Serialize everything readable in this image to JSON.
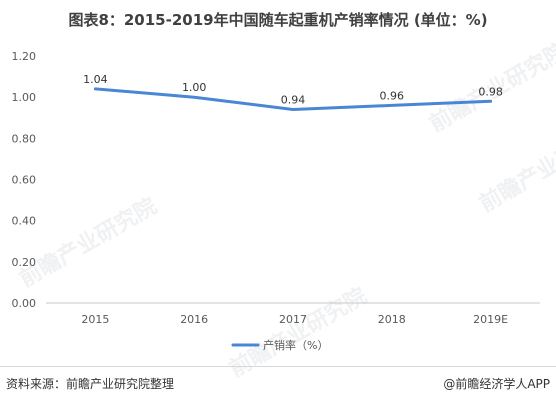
{
  "title": "图表8：2015-2019年中国随车起重机产销率情况 (单位：%)",
  "footer": {
    "source": "资料来源：前瞻产业研究院整理",
    "brand": "@前瞻经济学人APP"
  },
  "watermark": "前瞻产业研究院",
  "colors": {
    "series": "#4a86d6",
    "axis": "#c8c8c8",
    "text": "#595959"
  },
  "chart_data": {
    "type": "line",
    "title": "图表8：2015-2019年中国随车起重机产销率情况 (单位：%)",
    "categories": [
      "2015",
      "2016",
      "2017",
      "2018",
      "2019E"
    ],
    "series": [
      {
        "name": "产销率（%）",
        "values": [
          1.04,
          1.0,
          0.94,
          0.96,
          0.98
        ],
        "labels": [
          "1.04",
          "1.00",
          "0.94",
          "0.96",
          "0.98"
        ]
      }
    ],
    "yticks": [
      "0.00",
      "0.20",
      "0.40",
      "0.60",
      "0.80",
      "1.00",
      "1.20"
    ],
    "ylim": [
      0,
      1.2
    ],
    "grid": false,
    "legend": "bottom-center"
  }
}
